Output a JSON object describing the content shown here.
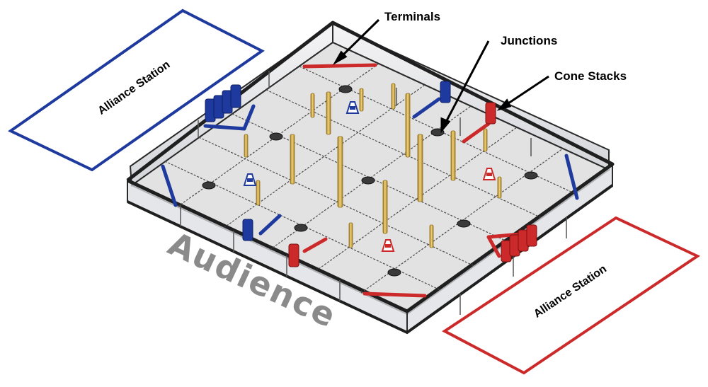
{
  "labels": {
    "terminals": "Terminals",
    "junctions": "Junctions",
    "cone_stacks": "Cone Stacks",
    "alliance_station_blue": "Alliance Station",
    "alliance_station_red": "Alliance Station",
    "audience": "Audience"
  },
  "colors": {
    "blue_alliance": "#1f3a9e",
    "red_alliance": "#cc2a2a",
    "pole": "#d9b24a",
    "wall": "#2a2a2a",
    "floor": "#e2e2e2",
    "audience_text": "#8a8a8a"
  }
}
